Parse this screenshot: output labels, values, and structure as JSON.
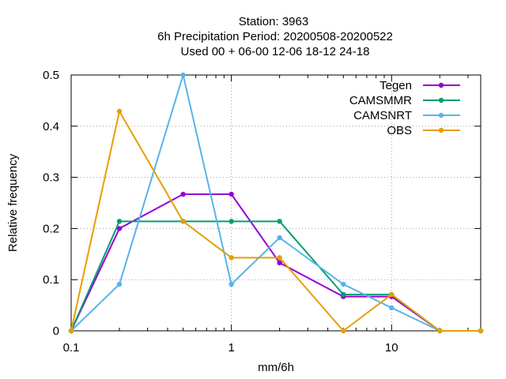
{
  "chart_data": {
    "type": "line",
    "title_lines": [
      "Station:     3963",
      "6h Precipitation  Period: 20200508-20200522",
      "Used  00 + 06-00 12-06 18-12 24-18"
    ],
    "xlabel": "mm/6h",
    "ylabel": "Relative frequency",
    "x_scale": "log",
    "xlim": [
      0.1,
      36
    ],
    "ylim": [
      0,
      0.5
    ],
    "x_ticks": [
      {
        "value": 0.1,
        "label": "0.1"
      },
      {
        "value": 1,
        "label": "1"
      },
      {
        "value": 10,
        "label": "10"
      }
    ],
    "y_ticks": [
      {
        "value": 0,
        "label": "0"
      },
      {
        "value": 0.1,
        "label": "0.1"
      },
      {
        "value": 0.2,
        "label": "0.2"
      },
      {
        "value": 0.3,
        "label": "0.3"
      },
      {
        "value": 0.4,
        "label": "0.4"
      },
      {
        "value": 0.5,
        "label": "0.5"
      }
    ],
    "grid": true,
    "legend_position": "top-right",
    "x": [
      0.1,
      0.2,
      0.5,
      1,
      2,
      5,
      10,
      20,
      36
    ],
    "series": [
      {
        "name": "Tegen",
        "color": "#9400d3",
        "values": [
          0,
          0.2,
          0.267,
          0.267,
          0.133,
          0.067,
          0.067,
          0,
          0
        ]
      },
      {
        "name": "CAMSMMR",
        "color": "#009e73",
        "values": [
          0,
          0.214,
          0.214,
          0.214,
          0.214,
          0.071,
          0.071,
          0,
          0
        ]
      },
      {
        "name": "CAMSNRT",
        "color": "#56b4e9",
        "values": [
          0,
          0.091,
          0.5,
          0.091,
          0.182,
          0.091,
          0.045,
          0,
          0
        ]
      },
      {
        "name": "OBS",
        "color": "#e69f00",
        "values": [
          0,
          0.429,
          0.214,
          0.143,
          0.143,
          0,
          0.071,
          0,
          0
        ]
      }
    ]
  }
}
